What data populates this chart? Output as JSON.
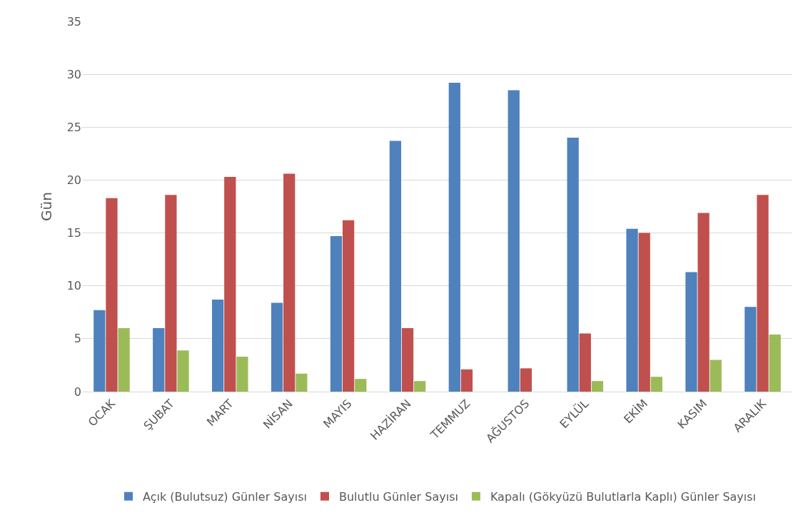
{
  "chart_data": {
    "type": "bar",
    "ylabel": "Gün",
    "categories": [
      "OCAK",
      "ŞUBAT",
      "MART",
      "NİSAN",
      "MAYIS",
      "HAZİRAN",
      "TEMMUZ",
      "AĞUSTOS",
      "EYLÜL",
      "EKİM",
      "KASIM",
      "ARALIK"
    ],
    "series": [
      {
        "name": "Açık (Bulutsuz) Günler Sayısı",
        "color": "#4f81bd",
        "values": [
          7.7,
          6.0,
          8.7,
          8.4,
          14.7,
          23.7,
          29.2,
          28.5,
          24.0,
          15.4,
          11.3,
          8.0
        ]
      },
      {
        "name": "Bulutlu Günler Sayısı",
        "color": "#c0504d",
        "values": [
          18.3,
          18.6,
          20.3,
          20.6,
          16.2,
          6.0,
          2.1,
          2.2,
          5.5,
          15.0,
          16.9,
          18.6
        ]
      },
      {
        "name": "Kapalı (Gökyüzü Bulutlarla Kaplı) Günler Sayısı",
        "color": "#9bbb59",
        "values": [
          6.0,
          3.9,
          3.3,
          1.7,
          1.2,
          1.0,
          null,
          null,
          1.0,
          1.4,
          3.0,
          5.4
        ]
      }
    ],
    "ylim": [
      0,
      35
    ],
    "yticks": [
      0,
      5,
      10,
      15,
      20,
      25,
      30,
      35
    ],
    "grid": "y",
    "legend": "bottom"
  }
}
